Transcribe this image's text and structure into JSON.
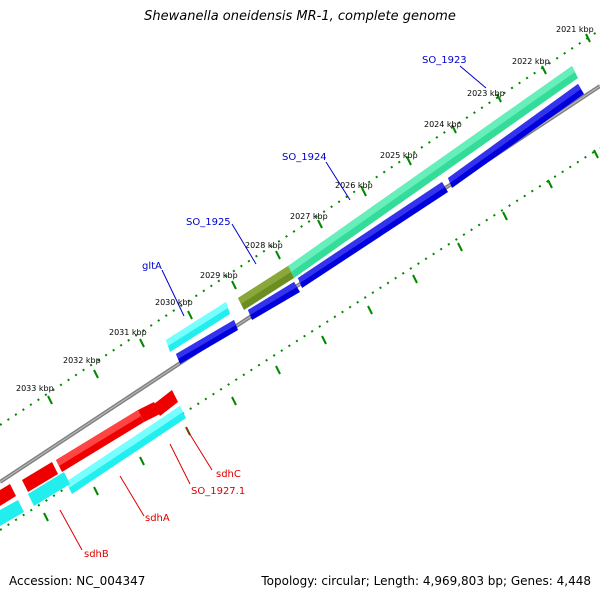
{
  "title": "Shewanella oneidensis MR-1, complete genome",
  "footer": {
    "accession": "Accession: NC_004347",
    "summary": "Topology: circular; Length: 4,969,803 bp; Genes: 4,448"
  },
  "colors": {
    "backbone": "#808080",
    "tick": "#008800",
    "feature_label_forward": "#0000cc",
    "feature_label_reverse": "#dd0000",
    "green_gene": "#33dd99",
    "olive_gene": "#6b8e23",
    "blue_gene": "#0000dd",
    "cyan_gene": "#22eeee",
    "red_gene": "#ee0000"
  },
  "ruler_labels": [
    "2021 kbp",
    "2022 kbp",
    "2023 kbp",
    "2024 kbp",
    "2025 kbp",
    "2026 kbp",
    "2027 kbp",
    "2028 kbp",
    "2029 kbp",
    "2030 kbp",
    "2031 kbp",
    "2032 kbp",
    "2033 kbp"
  ],
  "feature_labels_forward": [
    "SO_1923",
    "SO_1924",
    "SO_1925",
    "gltA"
  ],
  "feature_labels_reverse": [
    "sdhC",
    "SO_1927.1",
    "sdhA",
    "sdhB"
  ]
}
